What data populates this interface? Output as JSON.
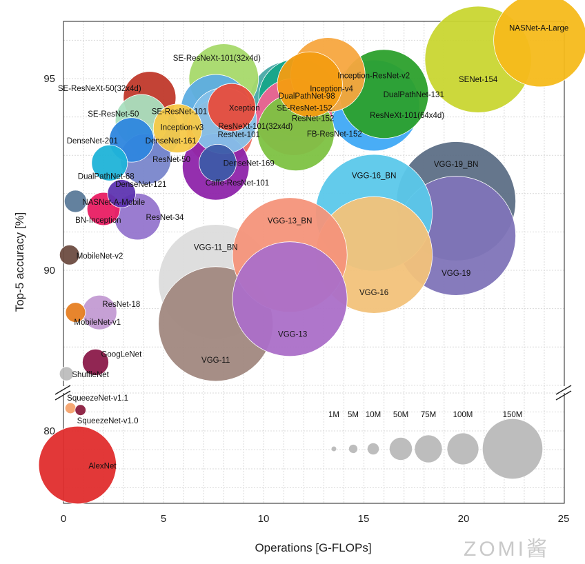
{
  "chart_data": {
    "type": "scatter",
    "xlabel": "Operations [G-FLOPs]",
    "ylabel": "Top-5 accuracy [%]",
    "xlim": [
      0,
      25
    ],
    "ylim": [
      78,
      96.5
    ],
    "ylim_broken": {
      "upper": [
        86.5,
        96.5
      ],
      "lower": [
        78,
        81.5
      ]
    },
    "x_ticks": [
      "0",
      "5",
      "10",
      "15",
      "20",
      "25"
    ],
    "y_ticks": [
      "80",
      "90",
      "95"
    ],
    "grid": true,
    "points": [
      {
        "label": "NASNet-A-Large",
        "x": 23.8,
        "y": 96.0,
        "params": 88,
        "color": "#f5ba1b"
      },
      {
        "label": "SENet-154",
        "x": 20.7,
        "y": 95.5,
        "params": 115,
        "color": "#c9d631"
      },
      {
        "label": "SE-ResNeXt-101(32x4d)",
        "x": 8.0,
        "y": 95.0,
        "params": 49,
        "color": "#a6d96a"
      },
      {
        "label": "Inception-ResNet-v2",
        "x": 13.2,
        "y": 95.1,
        "params": 56,
        "color": "#f7a73f"
      },
      {
        "label": "Inception-v4",
        "x": 12.3,
        "y": 94.85,
        "params": 43,
        "color": "#f39c12"
      },
      {
        "label": "DualPathNet-131",
        "x": 16.0,
        "y": 94.6,
        "params": 80,
        "color": "#2ca02c"
      },
      {
        "label": "DualPathNet-98",
        "x": 11.7,
        "y": 94.5,
        "params": 62,
        "color": "#17a589"
      },
      {
        "label": "SE-ResNet-152",
        "x": 11.3,
        "y": 94.4,
        "params": 66,
        "color": "#48a9a6"
      },
      {
        "label": "ResNeXt-101(64x4d)",
        "x": 15.5,
        "y": 94.3,
        "params": 84,
        "color": "#3fa9f5"
      },
      {
        "label": "ResNet-152",
        "x": 11.5,
        "y": 94.0,
        "params": 60,
        "color": "#f06292"
      },
      {
        "label": "SE-ResNeXt-50(32x4d)",
        "x": 4.3,
        "y": 94.5,
        "params": 28,
        "color": "#c0392b"
      },
      {
        "label": "Xception",
        "x": 8.4,
        "y": 94.25,
        "params": 23,
        "color": "#e74c3c"
      },
      {
        "label": "SE-ResNet-101",
        "x": 7.6,
        "y": 94.2,
        "params": 49,
        "color": "#5dade2"
      },
      {
        "label": "ResNeXt-101(32x4d)",
        "x": 8.0,
        "y": 93.9,
        "params": 44,
        "color": "#85c1e9"
      },
      {
        "label": "FB-ResNet-152",
        "x": 11.6,
        "y": 93.6,
        "params": 60,
        "color": "#7dc242"
      },
      {
        "label": "ResNet-101",
        "x": 7.8,
        "y": 93.6,
        "params": 45,
        "color": "#ec7063"
      },
      {
        "label": "Inception-v3",
        "x": 5.7,
        "y": 93.7,
        "params": 24,
        "color": "#f7c948"
      },
      {
        "label": "SE-ResNet-50",
        "x": 3.9,
        "y": 93.9,
        "params": 28,
        "color": "#a9dfbf"
      },
      {
        "label": "DenseNet-161",
        "x": 4.5,
        "y": 93.6,
        "params": 29,
        "color": "#3498db"
      },
      {
        "label": "DenseNet-201",
        "x": 3.4,
        "y": 93.4,
        "params": 20,
        "color": "#2e86de"
      },
      {
        "label": "ResNet-50",
        "x": 4.1,
        "y": 92.9,
        "params": 26,
        "color": "#7986cb"
      },
      {
        "label": "DualPathNet-68",
        "x": 2.3,
        "y": 92.8,
        "params": 13,
        "color": "#1fb3d8"
      },
      {
        "label": "DenseNet-169",
        "x": 7.7,
        "y": 92.8,
        "params": 14,
        "color": "#3d5aa8"
      },
      {
        "label": "Caffe-ResNet-101",
        "x": 7.6,
        "y": 92.7,
        "params": 45,
        "color": "#8e24aa"
      },
      {
        "label": "DenseNet-121",
        "x": 2.9,
        "y": 92.0,
        "params": 8,
        "color": "#5e35b1"
      },
      {
        "label": "NASNet-A-Mobile",
        "x": 0.6,
        "y": 91.8,
        "params": 5,
        "color": "#5b7a99"
      },
      {
        "label": "BN-Inception",
        "x": 2.0,
        "y": 91.6,
        "params": 11,
        "color": "#e91e63"
      },
      {
        "label": "ResNet-34",
        "x": 3.7,
        "y": 91.4,
        "params": 22,
        "color": "#9575cd"
      },
      {
        "label": "MobileNet-v2",
        "x": 0.3,
        "y": 90.4,
        "params": 4,
        "color": "#6d4c41"
      },
      {
        "label": "VGG-11_BN",
        "x": 7.6,
        "y": 89.7,
        "params": 133,
        "color": "#dcdcdc"
      },
      {
        "label": "VGG-11",
        "x": 7.6,
        "y": 88.6,
        "params": 133,
        "color": "#a1887f"
      },
      {
        "label": "VGG-13_BN",
        "x": 11.3,
        "y": 90.4,
        "params": 133,
        "color": "#f4937a"
      },
      {
        "label": "VGG-13",
        "x": 11.3,
        "y": 89.25,
        "params": 133,
        "color": "#ab6fc8"
      },
      {
        "label": "VGG-16_BN",
        "x": 15.5,
        "y": 91.5,
        "params": 138,
        "color": "#5bc8ea"
      },
      {
        "label": "VGG-16",
        "x": 15.5,
        "y": 90.4,
        "params": 138,
        "color": "#f2c27a"
      },
      {
        "label": "VGG-19_BN",
        "x": 19.6,
        "y": 91.8,
        "params": 144,
        "color": "#5d6f86"
      },
      {
        "label": "VGG-19",
        "x": 19.6,
        "y": 90.9,
        "params": 144,
        "color": "#7f74b8"
      },
      {
        "label": "ResNet-18",
        "x": 1.8,
        "y": 88.9,
        "params": 12,
        "color": "#c39bd3"
      },
      {
        "label": "MobileNet-v1",
        "x": 0.6,
        "y": 88.9,
        "params": 4,
        "color": "#e67e22"
      },
      {
        "label": "GoogLeNet",
        "x": 1.6,
        "y": 87.6,
        "params": 7,
        "color": "#8b1a4a"
      },
      {
        "label": "ShuffleNet",
        "x": 0.15,
        "y": 87.3,
        "params": 2,
        "color": "#bdbdbd"
      },
      {
        "label": "SqueezeNet-v1.1",
        "x": 0.35,
        "y": 80.6,
        "params": 1.2,
        "color": "#f5a36d"
      },
      {
        "label": "SqueezeNet-v1.0",
        "x": 0.85,
        "y": 80.55,
        "params": 1.2,
        "color": "#8b1e3f"
      },
      {
        "label": "AlexNet",
        "x": 0.7,
        "y": 79.1,
        "params": 61,
        "color": "#e02d2d"
      }
    ],
    "size_legend": {
      "labels": [
        "1M",
        "5M",
        "10M",
        "50M",
        "75M",
        "100M",
        "150M"
      ],
      "values": [
        1,
        5,
        10,
        50,
        75,
        100,
        150
      ],
      "color": "#bdbdbd"
    }
  },
  "watermark": "ZOMI酱"
}
